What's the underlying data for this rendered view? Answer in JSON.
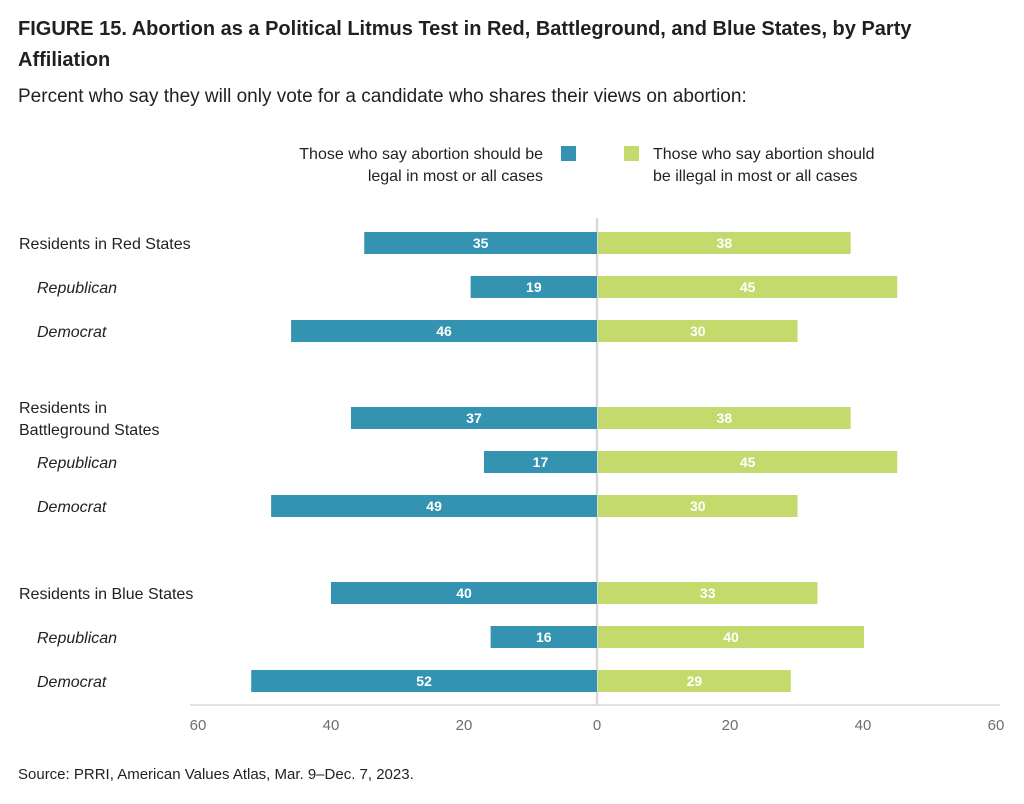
{
  "title": "FIGURE 15. Abortion as a Political Litmus  Test in Red, Battleground, and Blue States, by Party Affiliation",
  "subtitle": "Percent who say they will only vote for a candidate who shares their views on abortion:",
  "source": "Source: PRRI, American Values Atlas, Mar. 9–Dec. 7, 2023.",
  "colors": {
    "legal": "#3393b0",
    "illegal": "#c4da6d",
    "axis": "#d9d9d9"
  },
  "legend": {
    "legal": [
      "Those who say abortion should be",
      "legal in most or all cases"
    ],
    "illegal": [
      "Those who say abortion should",
      "be illegal in most or all cases"
    ]
  },
  "chart_data": {
    "type": "bar",
    "orientation": "horizontal-diverging",
    "categories": [
      [
        "Residents in Red States"
      ],
      [
        "Republican"
      ],
      [
        "Democrat"
      ],
      [
        "Residents in",
        "Battleground States"
      ],
      [
        "Republican"
      ],
      [
        "Democrat"
      ],
      [
        "Residents in Blue States"
      ],
      [
        "Republican"
      ],
      [
        "Democrat"
      ]
    ],
    "category_level": [
      "group",
      "sub",
      "sub",
      "group",
      "sub",
      "sub",
      "group",
      "sub",
      "sub"
    ],
    "series": [
      {
        "name": "Those who say abortion should be legal in most or all cases",
        "direction": "left",
        "values": [
          35,
          19,
          46,
          37,
          17,
          49,
          40,
          16,
          52
        ]
      },
      {
        "name": "Those who say abortion should be illegal in most or all cases",
        "direction": "right",
        "values": [
          38,
          45,
          30,
          38,
          45,
          30,
          33,
          40,
          29
        ]
      }
    ],
    "xlim": [
      -60,
      60
    ],
    "xticks": [
      "60",
      "40",
      "20",
      "0",
      "20",
      "40",
      "60"
    ],
    "legend_position": "top",
    "grid": false
  }
}
